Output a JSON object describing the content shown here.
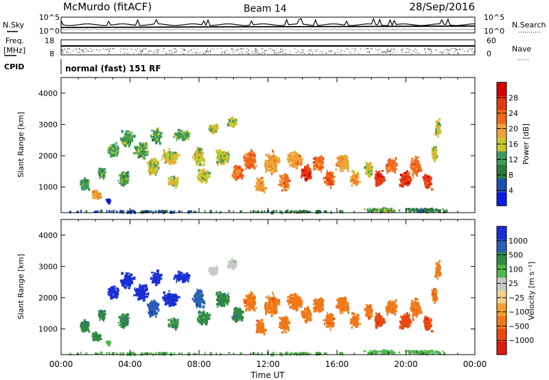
{
  "header": {
    "station": "McMurdo (fitACF)",
    "beam": "Beam 14",
    "date": "28/Sep/2016"
  },
  "status_panels": {
    "nsky_label": "N.Sky",
    "nsearch_label": "N.Search",
    "freq_label_1": "Freq.",
    "freq_label_2": "[MHz]",
    "nave_label": "Nave",
    "cpid_label": "CPID",
    "cpid_text": "normal (fast) 151 RF",
    "noise_ticks_left": [
      "10^5",
      "10^0"
    ],
    "noise_ticks_right": [
      "10^5",
      "10^0"
    ],
    "freq_ticks": [
      "18",
      "8"
    ],
    "nave_ticks": [
      "60",
      "0"
    ]
  },
  "chart_data": [
    {
      "type": "heatmap",
      "name": "power",
      "xlabel": "",
      "ylabel": "Slant Range [km]",
      "xlim": [
        0,
        24
      ],
      "ylim": [
        180,
        4500
      ],
      "y_ticks": [
        1000,
        2000,
        3000,
        4000
      ],
      "colorbar": {
        "label": "Power [dB]",
        "ticks": [
          "4",
          "8",
          "12",
          "16",
          "20",
          "24",
          "28"
        ],
        "range": [
          0,
          30
        ],
        "colors": [
          "#0a1fe0",
          "#1d4fb0",
          "#2c7a3a",
          "#3e9c5a",
          "#c8c82a",
          "#f2a03a",
          "#f06a1c",
          "#e43a14",
          "#d40000"
        ]
      }
    },
    {
      "type": "heatmap",
      "name": "velocity",
      "xlabel": "Time UT",
      "ylabel": "Slant Range [km]",
      "xlim": [
        0,
        24
      ],
      "ylim": [
        180,
        4500
      ],
      "x_ticks": [
        "00:00",
        "04:00",
        "08:00",
        "12:00",
        "16:00",
        "20:00",
        "00:00"
      ],
      "y_ticks": [
        1000,
        2000,
        3000,
        4000
      ],
      "colorbar": {
        "label": "Velocity [m s⁻¹]",
        "ticks": [
          "1000",
          "500",
          "100",
          "25",
          "−25",
          "−100",
          "−500",
          "−1000"
        ],
        "colors": [
          "#1a2fd6",
          "#2a5fb8",
          "#2f8a44",
          "#4fb84a",
          "#c8c8c8",
          "#f5d08a",
          "#f5a030",
          "#f07818",
          "#e84a10",
          "#e01a10"
        ]
      }
    }
  ]
}
